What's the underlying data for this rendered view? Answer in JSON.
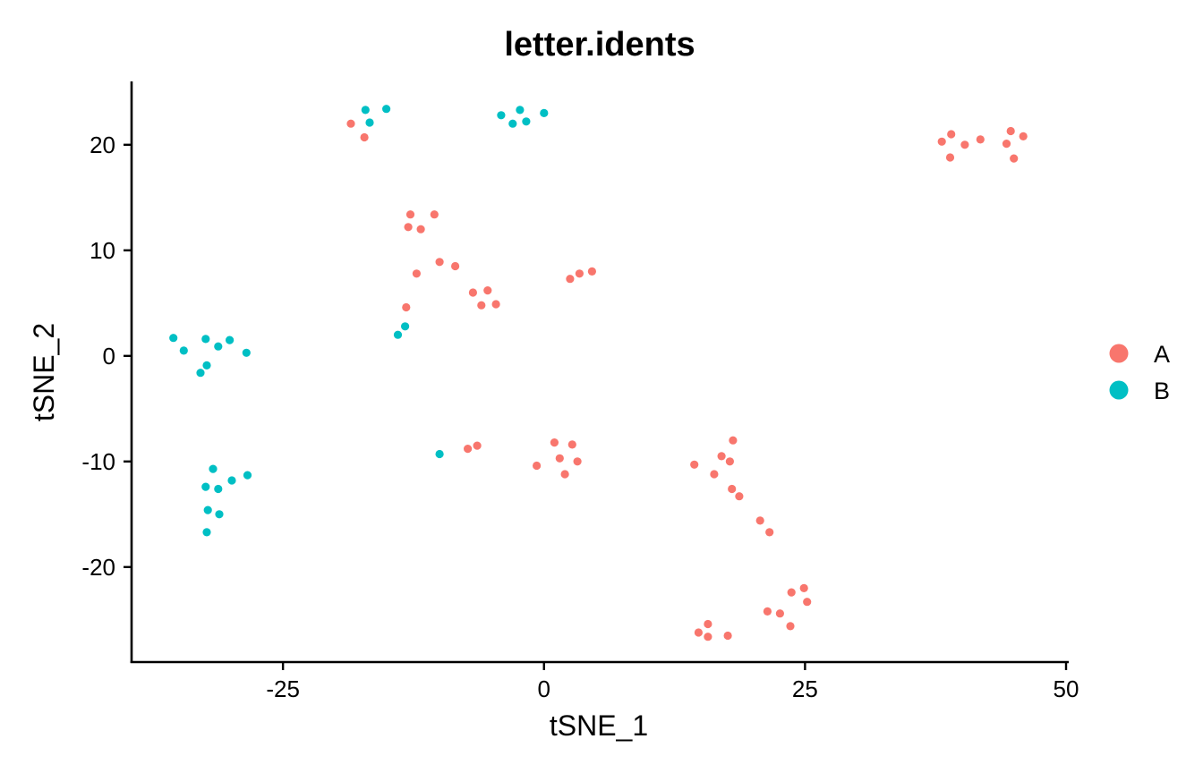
{
  "chart_data": {
    "type": "scatter",
    "title": "letter.idents",
    "xlabel": "tSNE_1",
    "ylabel": "tSNE_2",
    "xlim": [
      -39.5,
      50
    ],
    "ylim": [
      -29,
      26
    ],
    "x_ticks": [
      -25,
      0,
      25,
      50
    ],
    "y_ticks": [
      -20,
      -10,
      0,
      10,
      20
    ],
    "x_tick_labels": [
      "-25",
      "0",
      "25",
      "50"
    ],
    "y_tick_labels": [
      "-20",
      "-10",
      "0",
      "10",
      "20"
    ],
    "grid": false,
    "legend_position": "right",
    "series": [
      {
        "name": "A",
        "color": "#F8766D",
        "points": [
          [
            -18.5,
            22.0
          ],
          [
            -17.2,
            20.7
          ],
          [
            -12.8,
            13.4
          ],
          [
            -10.5,
            13.4
          ],
          [
            -13.0,
            12.2
          ],
          [
            -11.8,
            12.0
          ],
          [
            -10.0,
            8.9
          ],
          [
            -8.5,
            8.5
          ],
          [
            -12.2,
            7.8
          ],
          [
            -6.8,
            6.0
          ],
          [
            -5.4,
            6.2
          ],
          [
            -6.0,
            4.8
          ],
          [
            -4.6,
            4.9
          ],
          [
            -13.2,
            4.6
          ],
          [
            2.5,
            7.3
          ],
          [
            3.4,
            7.8
          ],
          [
            4.6,
            8.0
          ],
          [
            -7.3,
            -8.8
          ],
          [
            -6.4,
            -8.5
          ],
          [
            -0.7,
            -10.4
          ],
          [
            1.0,
            -8.2
          ],
          [
            1.5,
            -9.7
          ],
          [
            2.0,
            -11.2
          ],
          [
            2.7,
            -8.4
          ],
          [
            3.2,
            -10.0
          ],
          [
            14.4,
            -10.3
          ],
          [
            16.3,
            -11.2
          ],
          [
            17.0,
            -9.5
          ],
          [
            17.8,
            -10.0
          ],
          [
            18.1,
            -8.0
          ],
          [
            18.0,
            -12.6
          ],
          [
            18.7,
            -13.3
          ],
          [
            20.7,
            -15.6
          ],
          [
            21.6,
            -16.7
          ],
          [
            14.8,
            -26.2
          ],
          [
            15.7,
            -25.4
          ],
          [
            15.7,
            -26.6
          ],
          [
            17.6,
            -26.5
          ],
          [
            21.4,
            -24.2
          ],
          [
            22.6,
            -24.4
          ],
          [
            23.6,
            -25.6
          ],
          [
            23.7,
            -22.4
          ],
          [
            24.9,
            -22.0
          ],
          [
            25.2,
            -23.3
          ],
          [
            38.1,
            20.3
          ],
          [
            39.0,
            21.0
          ],
          [
            38.9,
            18.8
          ],
          [
            40.3,
            20.0
          ],
          [
            41.8,
            20.5
          ],
          [
            44.3,
            20.1
          ],
          [
            44.7,
            21.3
          ],
          [
            45.0,
            18.7
          ],
          [
            45.9,
            20.8
          ]
        ]
      },
      {
        "name": "B",
        "color": "#00BFC4",
        "points": [
          [
            -17.1,
            23.3
          ],
          [
            -16.7,
            22.1
          ],
          [
            -15.1,
            23.4
          ],
          [
            -4.1,
            22.8
          ],
          [
            -3.0,
            22.0
          ],
          [
            -2.3,
            23.3
          ],
          [
            -1.7,
            22.2
          ],
          [
            0.0,
            23.0
          ],
          [
            -35.5,
            1.7
          ],
          [
            -34.5,
            0.5
          ],
          [
            -32.4,
            1.6
          ],
          [
            -31.2,
            0.9
          ],
          [
            -30.1,
            1.5
          ],
          [
            -28.5,
            0.3
          ],
          [
            -32.3,
            -0.9
          ],
          [
            -32.9,
            -1.6
          ],
          [
            -13.3,
            2.8
          ],
          [
            -14.0,
            2.0
          ],
          [
            -10.0,
            -9.3
          ],
          [
            -31.7,
            -10.7
          ],
          [
            -28.4,
            -11.3
          ],
          [
            -29.9,
            -11.8
          ],
          [
            -32.4,
            -12.4
          ],
          [
            -31.2,
            -12.6
          ],
          [
            -32.2,
            -14.6
          ],
          [
            -31.1,
            -15.0
          ],
          [
            -32.3,
            -16.7
          ]
        ]
      }
    ]
  }
}
